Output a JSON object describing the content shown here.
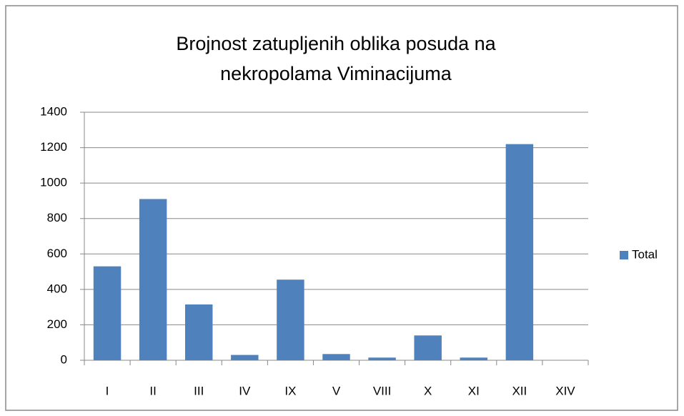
{
  "chart_data": {
    "type": "bar",
    "title": "Brojnost zatupljenih oblika posuda na nekropolama Viminacijuma",
    "categories": [
      "I",
      "II",
      "III",
      "IV",
      "IX",
      "V",
      "VIII",
      "X",
      "XI",
      "XII",
      "XIV"
    ],
    "series": [
      {
        "name": "Total",
        "color": "#4f81bd",
        "values": [
          530,
          910,
          315,
          30,
          455,
          35,
          15,
          140,
          15,
          1220,
          0
        ]
      }
    ],
    "ylim": [
      0,
      1400
    ],
    "yticks": [
      0,
      200,
      400,
      600,
      800,
      1000,
      1200,
      1400
    ],
    "grid": true,
    "legend": "right"
  }
}
